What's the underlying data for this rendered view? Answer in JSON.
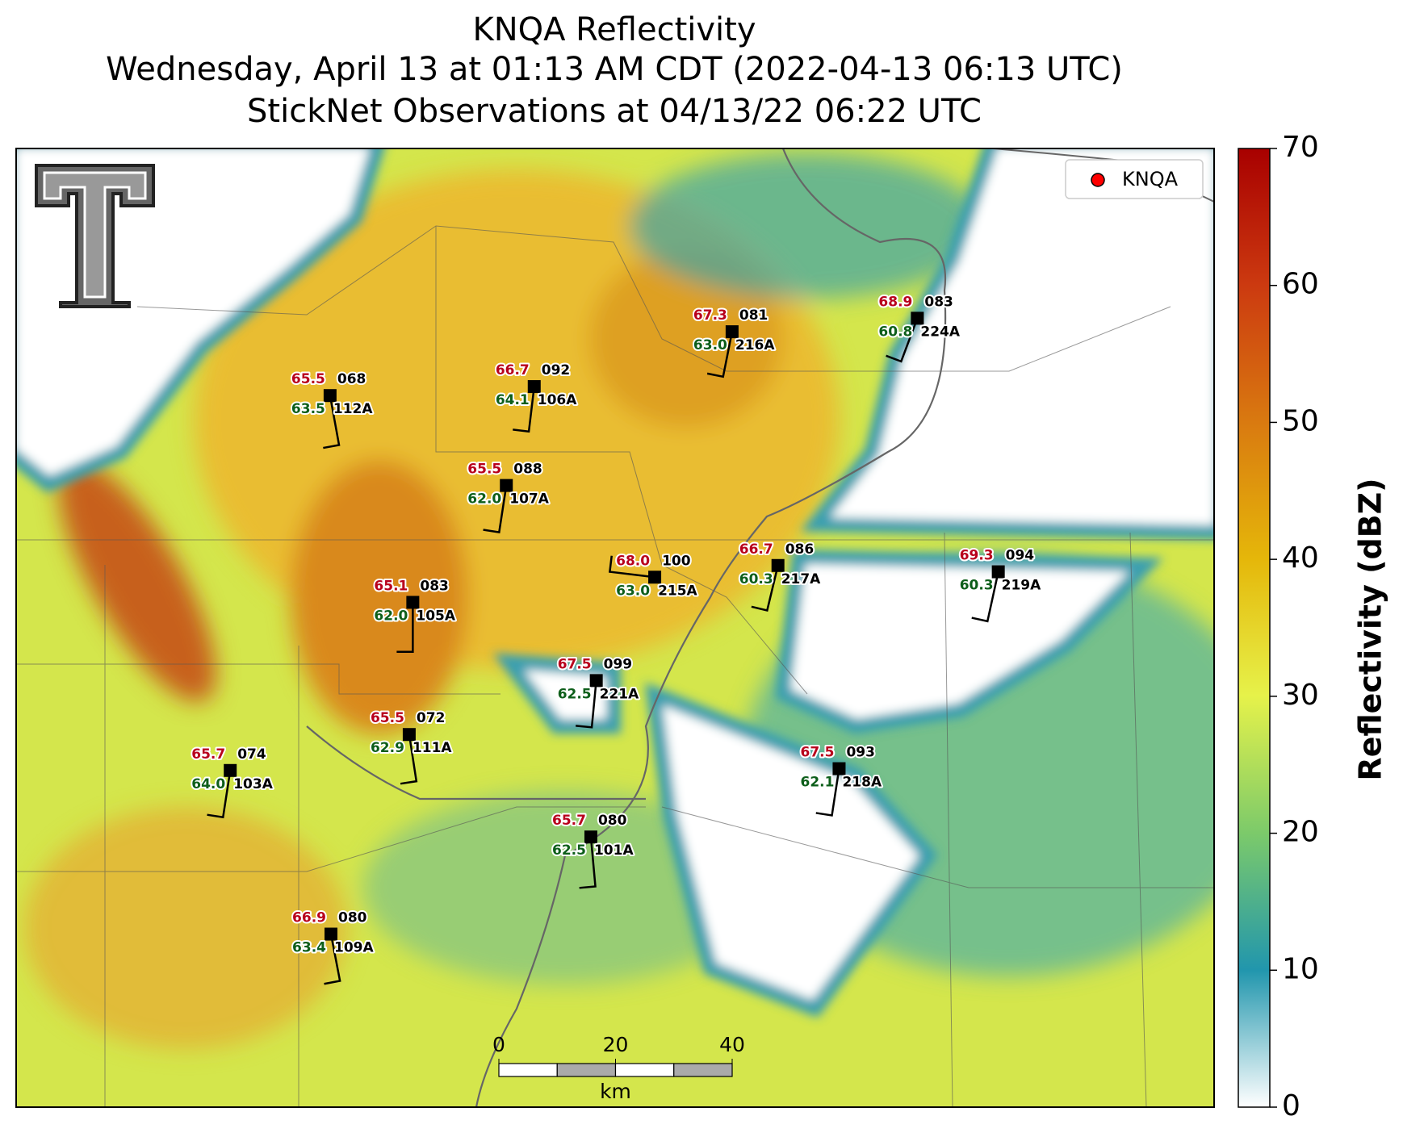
{
  "title_lines": [
    "KNQA Reflectivity",
    "Wednesday, April 13 at 01:13 AM CDT (2022-04-13 06:13 UTC)",
    "StickNet Observations at 04/13/22 06:22 UTC"
  ],
  "legend": {
    "label": "KNQA",
    "color": "#ff0000"
  },
  "stations": [
    {
      "temp": "65.5",
      "dewpoint": "63.5",
      "value": "068",
      "id": "112A"
    },
    {
      "temp": "66.7",
      "dewpoint": "64.1",
      "value": "092",
      "id": "106A"
    },
    {
      "temp": "67.3",
      "dewpoint": "63.0",
      "value": "081",
      "id": "216A"
    },
    {
      "temp": "68.9",
      "dewpoint": "60.8",
      "value": "083",
      "id": "224A"
    },
    {
      "temp": "65.5",
      "dewpoint": "62.0",
      "value": "088",
      "id": "107A"
    },
    {
      "temp": "68.0",
      "dewpoint": "63.0",
      "value": "100",
      "id": "215A"
    },
    {
      "temp": "66.7",
      "dewpoint": "60.3",
      "value": "086",
      "id": "217A"
    },
    {
      "temp": "69.3",
      "dewpoint": "60.3",
      "value": "094",
      "id": "219A"
    },
    {
      "temp": "65.1",
      "dewpoint": "62.0",
      "value": "083",
      "id": "105A"
    },
    {
      "temp": "67.5",
      "dewpoint": "62.5",
      "value": "099",
      "id": "221A"
    },
    {
      "temp": "65.5",
      "dewpoint": "62.9",
      "value": "072",
      "id": "111A"
    },
    {
      "temp": "65.7",
      "dewpoint": "64.0",
      "value": "074",
      "id": "103A"
    },
    {
      "temp": "67.5",
      "dewpoint": "62.1",
      "value": "093",
      "id": "218A"
    },
    {
      "temp": "65.7",
      "dewpoint": "62.5",
      "value": "080",
      "id": "101A"
    },
    {
      "temp": "66.9",
      "dewpoint": "63.4",
      "value": "080",
      "id": "109A"
    }
  ],
  "colorbar": {
    "label": "Reflectivity (dBZ)",
    "lim": [
      0,
      70
    ],
    "ticks": [
      0,
      10,
      20,
      30,
      40,
      50,
      60,
      70
    ]
  },
  "scale_bar": {
    "ticks": [
      0,
      20,
      40
    ],
    "unit": "km"
  }
}
